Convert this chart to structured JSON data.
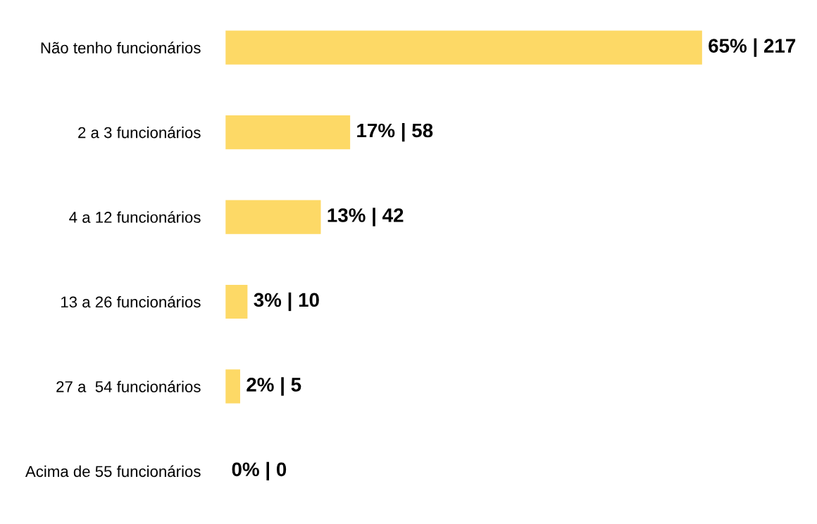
{
  "chart_data": {
    "type": "bar",
    "orientation": "horizontal",
    "categories": [
      "Não tenho funcionários",
      "2 a 3 funcionários",
      "4 a 12 funcionários",
      "13 a 26 funcionários",
      "27 a  54 funcionários",
      "Acima de 55 funcionários"
    ],
    "values": [
      65,
      17,
      13,
      3,
      2,
      0
    ],
    "value_labels": [
      "65% | 217",
      "17% | 58",
      "13% | 42",
      "3% | 10",
      "2% | 5",
      "0% | 0"
    ],
    "color": "#fdd966",
    "grid": false,
    "legend": false,
    "tick_labels": "y"
  }
}
